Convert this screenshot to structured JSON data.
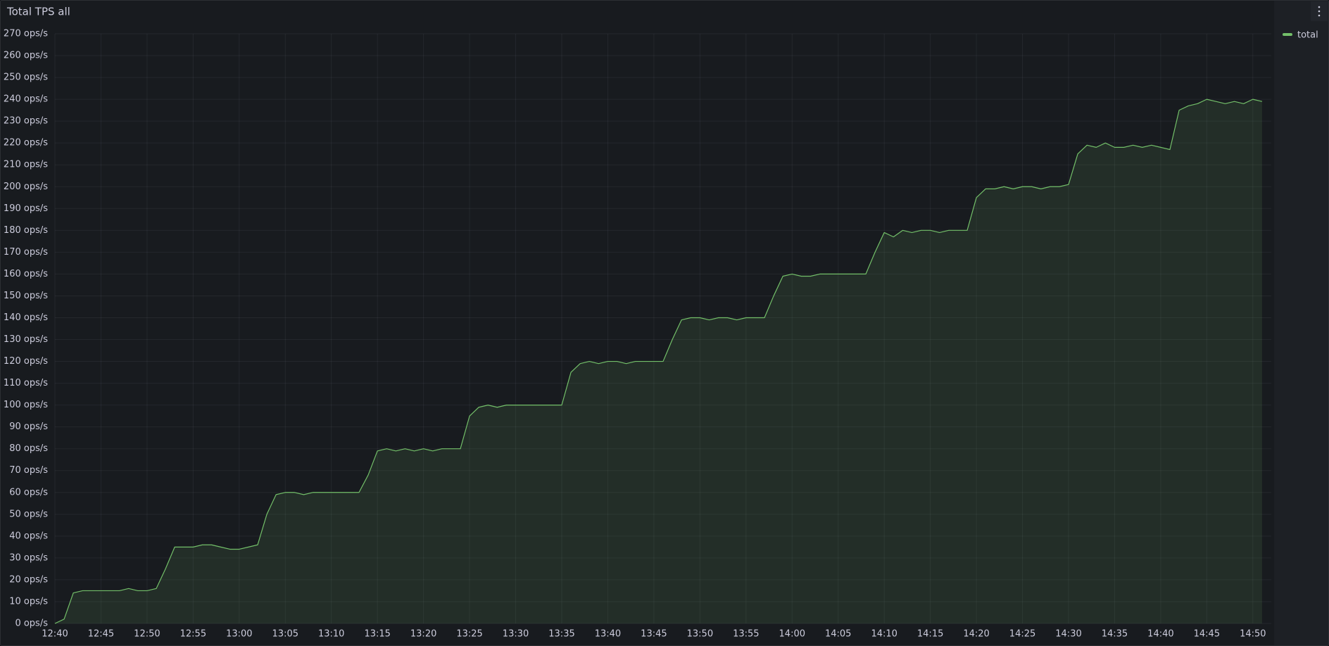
{
  "chart_data": {
    "type": "line",
    "title": "Total TPS all",
    "x": [
      "12:40",
      "12:41",
      "12:42",
      "12:43",
      "12:44",
      "12:45",
      "12:46",
      "12:47",
      "12:48",
      "12:49",
      "12:50",
      "12:51",
      "12:52",
      "12:53",
      "12:54",
      "12:55",
      "12:56",
      "12:57",
      "12:58",
      "12:59",
      "13:00",
      "13:01",
      "13:02",
      "13:03",
      "13:04",
      "13:05",
      "13:06",
      "13:07",
      "13:08",
      "13:09",
      "13:10",
      "13:11",
      "13:12",
      "13:13",
      "13:14",
      "13:15",
      "13:16",
      "13:17",
      "13:18",
      "13:19",
      "13:20",
      "13:21",
      "13:22",
      "13:23",
      "13:24",
      "13:25",
      "13:26",
      "13:27",
      "13:28",
      "13:29",
      "13:30",
      "13:31",
      "13:32",
      "13:33",
      "13:34",
      "13:35",
      "13:36",
      "13:37",
      "13:38",
      "13:39",
      "13:40",
      "13:41",
      "13:42",
      "13:43",
      "13:44",
      "13:45",
      "13:46",
      "13:47",
      "13:48",
      "13:49",
      "13:50",
      "13:51",
      "13:52",
      "13:53",
      "13:54",
      "13:55",
      "13:56",
      "13:57",
      "13:58",
      "13:59",
      "14:00",
      "14:01",
      "14:02",
      "14:03",
      "14:04",
      "14:05",
      "14:06",
      "14:07",
      "14:08",
      "14:09",
      "14:10",
      "14:11",
      "14:12",
      "14:13",
      "14:14",
      "14:15",
      "14:16",
      "14:17",
      "14:18",
      "14:19",
      "14:20",
      "14:21",
      "14:22",
      "14:23",
      "14:24",
      "14:25",
      "14:26",
      "14:27",
      "14:28",
      "14:29",
      "14:30",
      "14:31",
      "14:32",
      "14:33",
      "14:34",
      "14:35",
      "14:36",
      "14:37",
      "14:38",
      "14:39",
      "14:40",
      "14:41",
      "14:42",
      "14:43",
      "14:44",
      "14:45",
      "14:46",
      "14:47",
      "14:48",
      "14:49",
      "14:50",
      "14:51"
    ],
    "series": [
      {
        "name": "total",
        "color": "#73bf69",
        "values": [
          0,
          2,
          14,
          15,
          15,
          15,
          15,
          15,
          16,
          15,
          15,
          16,
          25,
          35,
          35,
          35,
          36,
          36,
          35,
          34,
          34,
          35,
          36,
          50,
          59,
          60,
          60,
          59,
          60,
          60,
          60,
          60,
          60,
          60,
          68,
          79,
          80,
          79,
          80,
          79,
          80,
          79,
          80,
          80,
          80,
          95,
          99,
          100,
          99,
          100,
          100,
          100,
          100,
          100,
          100,
          100,
          115,
          119,
          120,
          119,
          120,
          120,
          119,
          120,
          120,
          120,
          120,
          130,
          139,
          140,
          140,
          139,
          140,
          140,
          139,
          140,
          140,
          140,
          150,
          159,
          160,
          159,
          159,
          160,
          160,
          160,
          160,
          160,
          160,
          170,
          179,
          177,
          180,
          179,
          180,
          180,
          179,
          180,
          180,
          180,
          195,
          199,
          199,
          200,
          199,
          200,
          200,
          199,
          200,
          200,
          201,
          215,
          219,
          218,
          220,
          218,
          218,
          219,
          218,
          219,
          218,
          217,
          235,
          237,
          238,
          240,
          239,
          238,
          239,
          238,
          240,
          239
        ]
      }
    ],
    "xlim": [
      "12:40",
      "14:52"
    ],
    "xticks": [
      "12:40",
      "12:45",
      "12:50",
      "12:55",
      "13:00",
      "13:05",
      "13:10",
      "13:15",
      "13:20",
      "13:25",
      "13:30",
      "13:35",
      "13:40",
      "13:45",
      "13:50",
      "13:55",
      "14:00",
      "14:05",
      "14:10",
      "14:15",
      "14:20",
      "14:25",
      "14:30",
      "14:35",
      "14:40",
      "14:45",
      "14:50"
    ],
    "ylim": [
      0,
      270
    ],
    "yticks": [
      {
        "value": 0,
        "label": "0 ops/s"
      },
      {
        "value": 10,
        "label": "10 ops/s"
      },
      {
        "value": 20,
        "label": "20 ops/s"
      },
      {
        "value": 30,
        "label": "30 ops/s"
      },
      {
        "value": 40,
        "label": "40 ops/s"
      },
      {
        "value": 50,
        "label": "50 ops/s"
      },
      {
        "value": 60,
        "label": "60 ops/s"
      },
      {
        "value": 70,
        "label": "70 ops/s"
      },
      {
        "value": 80,
        "label": "80 ops/s"
      },
      {
        "value": 90,
        "label": "90 ops/s"
      },
      {
        "value": 100,
        "label": "100 ops/s"
      },
      {
        "value": 110,
        "label": "110 ops/s"
      },
      {
        "value": 120,
        "label": "120 ops/s"
      },
      {
        "value": 130,
        "label": "130 ops/s"
      },
      {
        "value": 140,
        "label": "140 ops/s"
      },
      {
        "value": 150,
        "label": "150 ops/s"
      },
      {
        "value": 160,
        "label": "160 ops/s"
      },
      {
        "value": 170,
        "label": "170 ops/s"
      },
      {
        "value": 180,
        "label": "180 ops/s"
      },
      {
        "value": 190,
        "label": "190 ops/s"
      },
      {
        "value": 200,
        "label": "200 ops/s"
      },
      {
        "value": 210,
        "label": "210 ops/s"
      },
      {
        "value": 220,
        "label": "220 ops/s"
      },
      {
        "value": 230,
        "label": "230 ops/s"
      },
      {
        "value": 240,
        "label": "240 ops/s"
      },
      {
        "value": 250,
        "label": "250 ops/s"
      },
      {
        "value": 260,
        "label": "260 ops/s"
      },
      {
        "value": 270,
        "label": "270 ops/s"
      }
    ],
    "grid": true,
    "legend": "top-right",
    "fill": true
  }
}
